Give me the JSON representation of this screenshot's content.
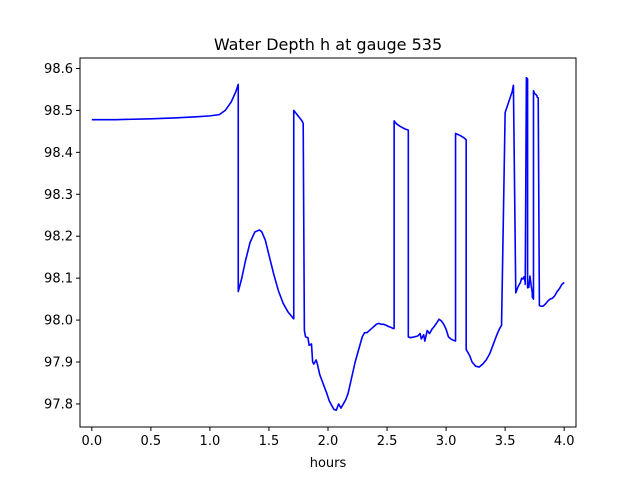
{
  "chart_data": {
    "type": "line",
    "title": "Water Depth h at gauge 535",
    "xlabel": "hours",
    "ylabel": "",
    "xlim": [
      -0.1,
      4.1
    ],
    "ylim": [
      97.745,
      98.625
    ],
    "xticks": [
      0.0,
      0.5,
      1.0,
      1.5,
      2.0,
      2.5,
      3.0,
      3.5,
      4.0
    ],
    "xtick_labels": [
      "0.0",
      "0.5",
      "1.0",
      "1.5",
      "2.0",
      "2.5",
      "3.0",
      "3.5",
      "4.0"
    ],
    "yticks": [
      97.8,
      97.9,
      98.0,
      98.1,
      98.2,
      98.3,
      98.4,
      98.5,
      98.6
    ],
    "ytick_labels": [
      "97.8",
      "97.9",
      "98.0",
      "98.1",
      "98.2",
      "98.3",
      "98.4",
      "98.5",
      "98.6"
    ],
    "grid": false,
    "color": "#0000ff",
    "series": [
      {
        "x": [
          0.0,
          0.2,
          0.5,
          0.7,
          0.9,
          1.0,
          1.08,
          1.13,
          1.18,
          1.22,
          1.24,
          1.24,
          1.27,
          1.3,
          1.34,
          1.38,
          1.42,
          1.44,
          1.47,
          1.5,
          1.54,
          1.58,
          1.62,
          1.66,
          1.7,
          1.71,
          1.71,
          1.78,
          1.79,
          1.79,
          1.8,
          1.81,
          1.83,
          1.84,
          1.86,
          1.87,
          1.88,
          1.9,
          1.91,
          1.93,
          1.95,
          1.97,
          1.99,
          2.01,
          2.03,
          2.05,
          2.07,
          2.09,
          2.11,
          2.12,
          2.13,
          2.15,
          2.17,
          2.19,
          2.21,
          2.23,
          2.25,
          2.27,
          2.29,
          2.31,
          2.33,
          2.35,
          2.37,
          2.39,
          2.41,
          2.43,
          2.45,
          2.47,
          2.49,
          2.51,
          2.53,
          2.55,
          2.56,
          2.56,
          2.58,
          2.61,
          2.65,
          2.68,
          2.68,
          2.7,
          2.73,
          2.76,
          2.78,
          2.79,
          2.81,
          2.82,
          2.84,
          2.86,
          2.88,
          2.9,
          2.92,
          2.94,
          2.96,
          2.98,
          3.0,
          3.02,
          3.04,
          3.06,
          3.08,
          3.08,
          3.12,
          3.15,
          3.17,
          3.17,
          3.18,
          3.2,
          3.22,
          3.25,
          3.28,
          3.31,
          3.34,
          3.37,
          3.39,
          3.41,
          3.43,
          3.45,
          3.47,
          3.47,
          3.5,
          3.53,
          3.56,
          3.57,
          3.57,
          3.59,
          3.61,
          3.63,
          3.64,
          3.65,
          3.66,
          3.67,
          3.67,
          3.68,
          3.69,
          3.69,
          3.7,
          3.71,
          3.72,
          3.73,
          3.73,
          3.74,
          3.74,
          3.75,
          3.76,
          3.77,
          3.77,
          3.78,
          3.79,
          3.8,
          3.82,
          3.84,
          3.86,
          3.88,
          3.9,
          3.92,
          3.94,
          3.96,
          3.98,
          4.0
        ],
        "y": [
          98.478,
          98.478,
          98.48,
          98.482,
          98.485,
          98.487,
          98.49,
          98.5,
          98.52,
          98.545,
          98.562,
          98.068,
          98.1,
          98.14,
          98.185,
          98.21,
          98.215,
          98.21,
          98.19,
          98.155,
          98.11,
          98.07,
          98.04,
          98.02,
          98.006,
          98.003,
          98.5,
          98.475,
          98.469,
          98.469,
          97.975,
          97.96,
          97.958,
          97.94,
          97.943,
          97.9,
          97.895,
          97.905,
          97.895,
          97.87,
          97.855,
          97.84,
          97.825,
          97.808,
          97.797,
          97.787,
          97.785,
          97.8,
          97.79,
          97.795,
          97.8,
          97.81,
          97.825,
          97.85,
          97.875,
          97.9,
          97.92,
          97.94,
          97.96,
          97.97,
          97.97,
          97.975,
          97.98,
          97.985,
          97.99,
          97.992,
          97.99,
          97.99,
          97.988,
          97.985,
          97.983,
          97.98,
          97.98,
          98.475,
          98.468,
          98.462,
          98.456,
          98.453,
          97.96,
          97.958,
          97.96,
          97.962,
          97.968,
          97.955,
          97.965,
          97.95,
          97.975,
          97.968,
          97.978,
          97.985,
          97.993,
          98.002,
          97.998,
          97.99,
          97.978,
          97.96,
          97.955,
          97.952,
          97.95,
          98.445,
          98.44,
          98.435,
          98.43,
          97.93,
          97.925,
          97.915,
          97.9,
          97.89,
          97.888,
          97.895,
          97.905,
          97.92,
          97.935,
          97.95,
          97.965,
          97.978,
          97.988,
          97.995,
          98.495,
          98.52,
          98.545,
          98.56,
          98.56,
          98.065,
          98.08,
          98.09,
          98.1,
          98.098,
          98.103,
          98.09,
          98.085,
          98.578,
          98.575,
          98.077,
          98.078,
          98.105,
          98.083,
          98.065,
          98.055,
          98.05,
          98.547,
          98.54,
          98.538,
          98.535,
          98.532,
          98.53,
          98.035,
          98.033,
          98.033,
          98.038,
          98.045,
          98.05,
          98.052,
          98.058,
          98.068,
          98.075,
          98.085,
          98.09
        ]
      }
    ]
  }
}
